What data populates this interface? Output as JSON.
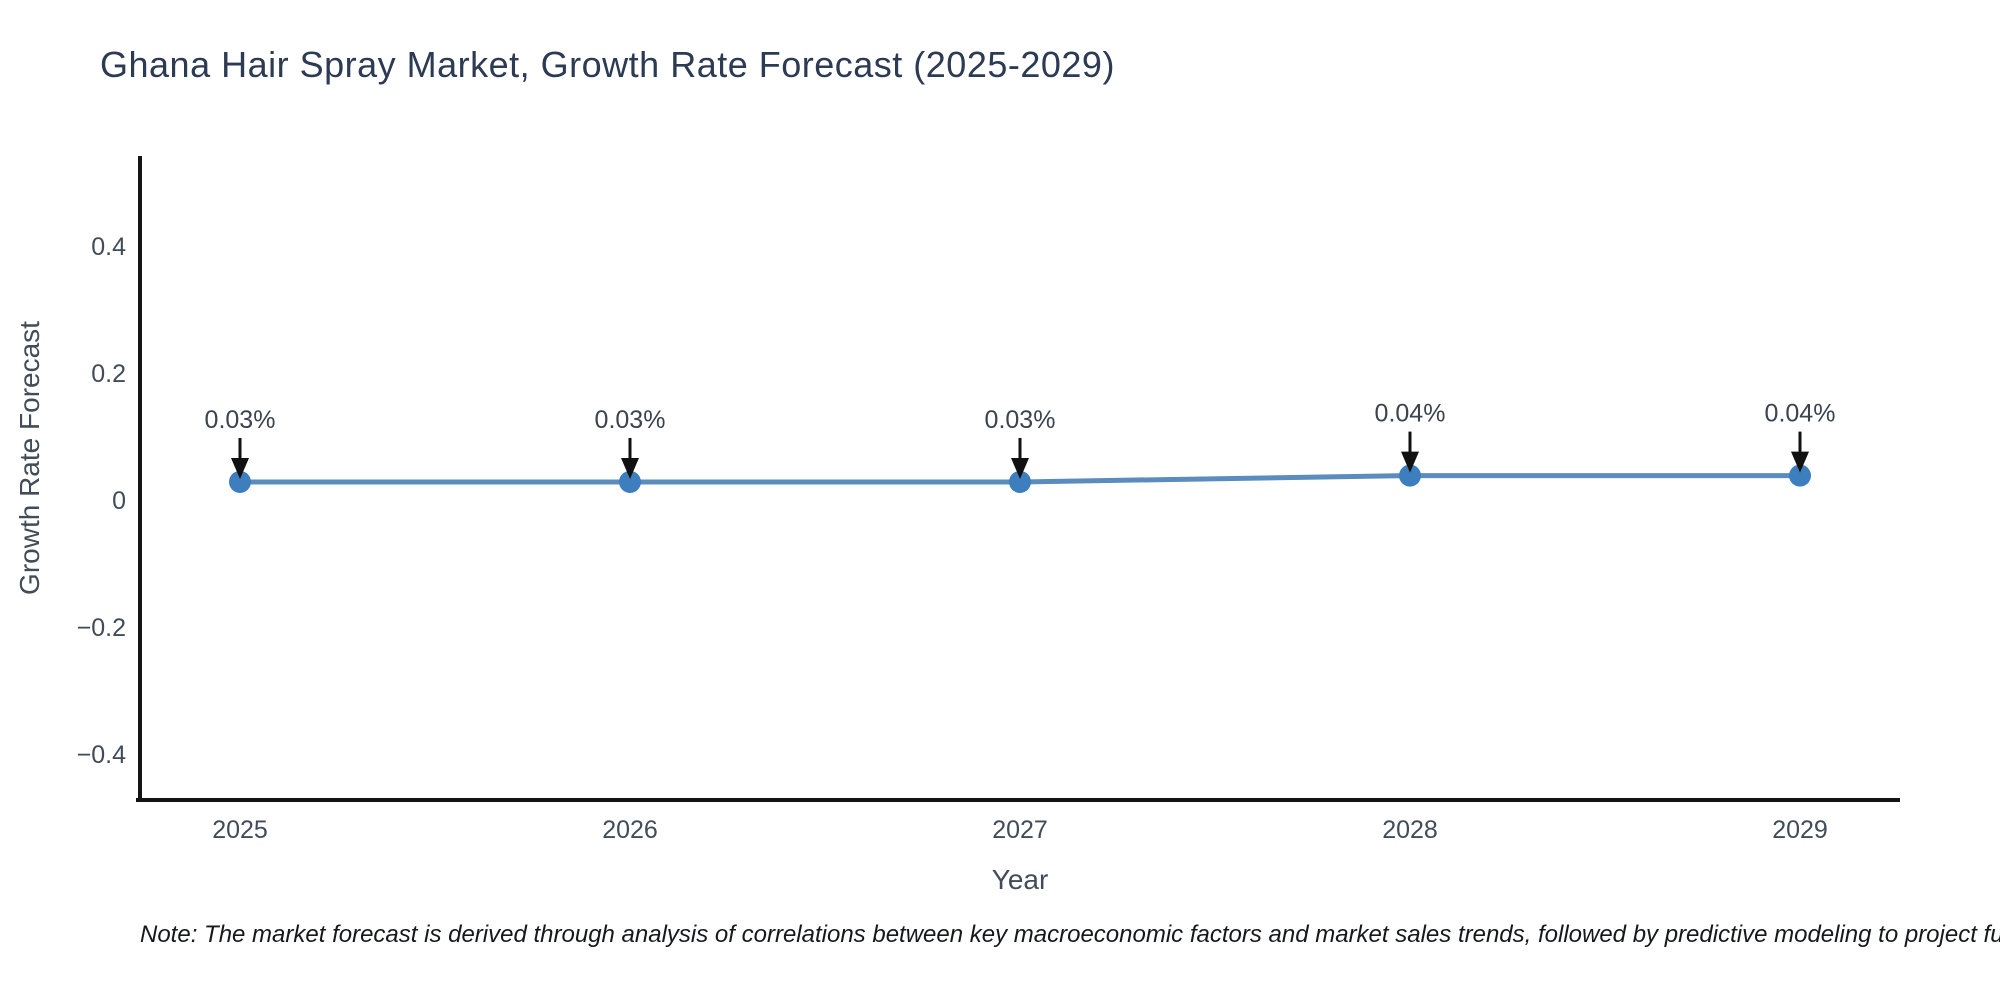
{
  "chart_data": {
    "type": "line",
    "title": "Ghana Hair Spray Market, Growth Rate Forecast (2025-2029)",
    "xlabel": "Year",
    "ylabel": "Growth Rate Forecast",
    "x": [
      2025,
      2026,
      2027,
      2028,
      2029
    ],
    "xtick_labels": [
      "2025",
      "2026",
      "2027",
      "2028",
      "2029"
    ],
    "series": [
      {
        "name": "Growth Rate Forecast",
        "values": [
          0.03,
          0.03,
          0.03,
          0.04,
          0.04
        ]
      }
    ],
    "point_labels": [
      "0.03%",
      "0.03%",
      "0.03%",
      "0.04%",
      "0.04%"
    ],
    "yticks": [
      0.4,
      0.2,
      0,
      -0.2,
      -0.4
    ],
    "ytick_labels": [
      "0.4",
      "0.2",
      "0",
      "−0.2",
      "−0.4"
    ],
    "ylim": [
      -0.47,
      0.535
    ],
    "grid": false,
    "legend": "none",
    "annotation_arrow_direction": "down",
    "note": "Note: The market forecast is derived through analysis of correlations between key macroeconomic factors and market sales trends, followed by predictive modeling to project future sales.",
    "colors": {
      "line": "#5a8cbe",
      "marker": "#3d7ebf",
      "arrow": "#111111",
      "spine": "#141414",
      "title_text": "#2d3a53",
      "axis_text": "#414c59",
      "annotation_text": "#3a434e",
      "note_text": "#16181c",
      "background": "#ffffff"
    }
  }
}
